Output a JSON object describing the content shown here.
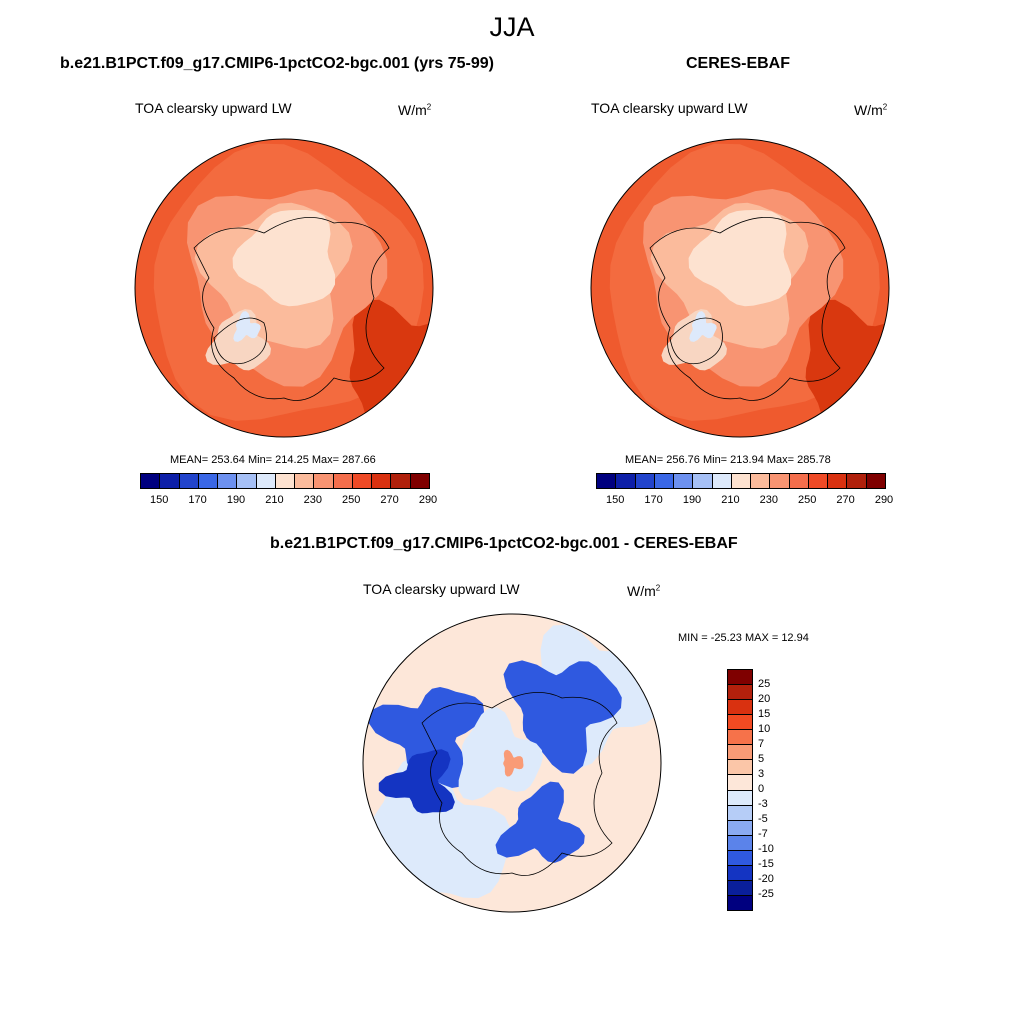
{
  "season": "JJA",
  "panels": [
    {
      "title": "b.e21.B1PCT.f09_g17.CMIP6-1pctCO2-bgc.001 (yrs 75-99)",
      "variable": "TOA clearsky upward LW",
      "units": "W/m",
      "units_exp": "2",
      "stats": "MEAN= 253.64  Min= 214.25  Max= 287.66",
      "values": {
        "mean": 253.64,
        "min": 214.25,
        "max": 287.66
      }
    },
    {
      "title": "CERES-EBAF",
      "variable": "TOA clearsky upward LW",
      "units": "W/m",
      "units_exp": "2",
      "stats": "MEAN= 256.76  Min= 213.94  Max= 285.78",
      "values": {
        "mean": 256.76,
        "min": 213.94,
        "max": 285.78
      }
    },
    {
      "title": "b.e21.B1PCT.f09_g17.CMIP6-1pctCO2-bgc.001 - CERES-EBAF",
      "variable": "TOA clearsky upward LW",
      "units": "W/m",
      "units_exp": "2",
      "stats": "MIN = -25.23 MAX =  12.94",
      "values": {
        "min": -25.23,
        "max": 12.94
      }
    }
  ],
  "abs_colorbar": {
    "tick_labels": [
      "150",
      "170",
      "190",
      "210",
      "230",
      "250",
      "270",
      "290"
    ],
    "colors": [
      "#00007f",
      "#0d1fa8",
      "#2244cc",
      "#3a67e6",
      "#6d91f0",
      "#a6c0f6",
      "#dde9fb",
      "#fde2d0",
      "#fbbb9c",
      "#f89472",
      "#f46e4c",
      "#ef4a26",
      "#d93110",
      "#b0200b",
      "#7f0000"
    ]
  },
  "diff_colorbar": {
    "tick_labels": [
      "25",
      "20",
      "15",
      "10",
      "7",
      "5",
      "3",
      "0",
      "-3",
      "-5",
      "-7",
      "-10",
      "-15",
      "-20",
      "-25"
    ],
    "colors": [
      "#7f0000",
      "#b2200c",
      "#d93110",
      "#f24a22",
      "#f6724a",
      "#f99b76",
      "#fbc6a8",
      "#fde7d9",
      "#ddeafb",
      "#b6cdf7",
      "#8aaaf1",
      "#5b83ea",
      "#2f59e0",
      "#1434c2",
      "#0a1f9a",
      "#00007f"
    ]
  }
}
